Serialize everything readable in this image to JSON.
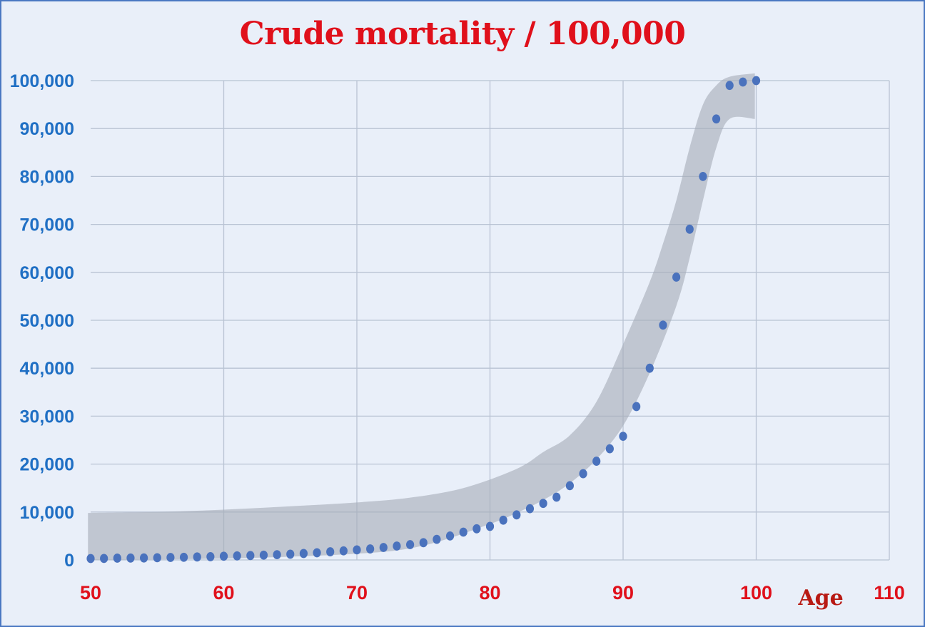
{
  "chart_data": {
    "type": "scatter",
    "title": "Crude mortality / 100,000",
    "xlabel": "Age",
    "ylabel": "",
    "xlim": [
      50,
      110
    ],
    "ylim": [
      0,
      100000
    ],
    "x_ticks": [
      50,
      60,
      70,
      80,
      90,
      100,
      110
    ],
    "x_tick_labels": [
      "50",
      "60",
      "70",
      "80",
      "90",
      "100",
      "110"
    ],
    "y_ticks": [
      0,
      10000,
      20000,
      30000,
      40000,
      50000,
      60000,
      70000,
      80000,
      90000,
      100000
    ],
    "y_tick_labels": [
      "0",
      "10,000",
      "20,000",
      "30,000",
      "40,000",
      "50,000",
      "60,000",
      "70,000",
      "80,000",
      "90,000",
      "100,000"
    ],
    "grid": true,
    "legend": "none",
    "colors": {
      "points": "#4a72bd",
      "band": "#a7adb8",
      "title": "#e0101b",
      "y_ticks": "#1f6fc4",
      "x_ticks": "#e0101b",
      "xlabel": "#b81a14",
      "grid": "#b9c3d3"
    },
    "series": [
      {
        "x": [
          50,
          51,
          52,
          53,
          54,
          55,
          56,
          57,
          58,
          59,
          60,
          61,
          62,
          63,
          64,
          65,
          66,
          67,
          68,
          69,
          70,
          71,
          72,
          73,
          74,
          75,
          76,
          77,
          78,
          79,
          80,
          81,
          82,
          83,
          84,
          85,
          86,
          87,
          88,
          89,
          90,
          91,
          92,
          93,
          94,
          95,
          96,
          97,
          98,
          99,
          100
        ],
        "y": [
          300,
          320,
          380,
          400,
          420,
          470,
          520,
          560,
          620,
          680,
          780,
          850,
          920,
          1000,
          1100,
          1200,
          1350,
          1500,
          1700,
          1900,
          2100,
          2300,
          2600,
          2900,
          3200,
          3600,
          4300,
          5000,
          5800,
          6500,
          7000,
          8300,
          9400,
          10700,
          11800,
          13100,
          15500,
          18000,
          20600,
          23200,
          25800,
          32000,
          40000,
          49000,
          59000,
          69000,
          80000,
          92000,
          99000,
          99700,
          100000
        ]
      }
    ],
    "band": {
      "upper": [
        [
          49.8,
          9800
        ],
        [
          55,
          10000
        ],
        [
          60,
          10500
        ],
        [
          65,
          11200
        ],
        [
          70,
          12000
        ],
        [
          74,
          13000
        ],
        [
          78,
          15000
        ],
        [
          82,
          19000
        ],
        [
          84,
          22500
        ],
        [
          86,
          26000
        ],
        [
          88,
          33000
        ],
        [
          90,
          45000
        ],
        [
          92,
          58000
        ],
        [
          93,
          66000
        ],
        [
          94,
          75000
        ],
        [
          95,
          86000
        ],
        [
          96,
          95000
        ],
        [
          97,
          99000
        ],
        [
          98,
          100800
        ],
        [
          99.9,
          101500
        ]
      ],
      "lower": [
        [
          49.8,
          0
        ],
        [
          60,
          300
        ],
        [
          70,
          1300
        ],
        [
          75,
          3000
        ],
        [
          80,
          7500
        ],
        [
          82,
          9800
        ],
        [
          84,
          12500
        ],
        [
          86,
          16000
        ],
        [
          88,
          21000
        ],
        [
          90,
          28000
        ],
        [
          92,
          39000
        ],
        [
          94,
          53000
        ],
        [
          95,
          63000
        ],
        [
          96,
          75000
        ],
        [
          97,
          86000
        ],
        [
          98,
          92000
        ],
        [
          99.9,
          92000
        ]
      ]
    }
  }
}
